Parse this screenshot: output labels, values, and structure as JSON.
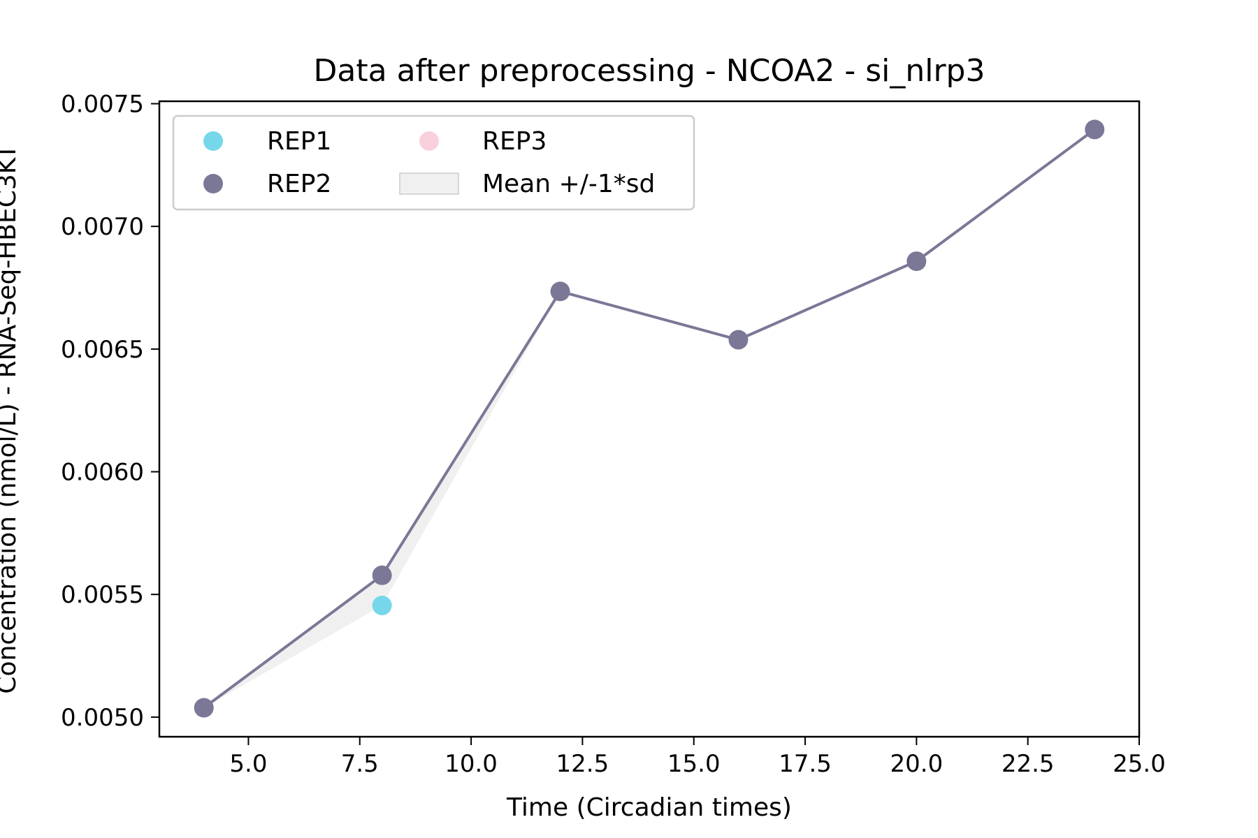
{
  "chart_data": {
    "type": "line",
    "title": "Data after preprocessing - NCOA2 - si_nlrp3",
    "xlabel": "Time (Circadian times)",
    "ylabel": "Concentration (nmol/L) - RNA-Seq-HBEC3KT",
    "xlim": [
      3.0,
      25.0
    ],
    "ylim": [
      0.00492,
      0.00751
    ],
    "xticks": [
      5.0,
      7.5,
      10.0,
      12.5,
      15.0,
      17.5,
      20.0,
      22.5,
      25.0
    ],
    "xtick_labels": [
      "5.0",
      "7.5",
      "10.0",
      "12.5",
      "15.0",
      "17.5",
      "20.0",
      "22.5",
      "25.0"
    ],
    "yticks": [
      0.005,
      0.0055,
      0.006,
      0.0065,
      0.007,
      0.0075
    ],
    "ytick_labels": [
      "0.0050",
      "0.0055",
      "0.0060",
      "0.0065",
      "0.0070",
      "0.0075"
    ],
    "grid": false,
    "legend_position": "top-left",
    "series": [
      {
        "name": "REP1",
        "kind": "scatter",
        "color": "#76d7ea",
        "x": [
          8
        ],
        "y": [
          0.005455
        ]
      },
      {
        "name": "REP2",
        "kind": "line+scatter",
        "color": "#7a7896",
        "x": [
          4,
          8,
          12,
          16,
          20,
          24
        ],
        "y": [
          0.005038,
          0.005578,
          0.006735,
          0.006538,
          0.006858,
          0.007395
        ]
      },
      {
        "name": "REP3",
        "kind": "scatter",
        "color": "#f9d0dc",
        "x": [],
        "y": []
      }
    ],
    "band": {
      "name": "Mean +/-1*sd",
      "color": "#d9d9d9",
      "x": [
        4,
        8,
        12,
        16,
        20,
        24
      ],
      "lower": [
        0.005038,
        0.005455,
        0.006735,
        0.006538,
        0.006858,
        0.007395
      ],
      "upper": [
        0.005038,
        0.005578,
        0.006735,
        0.006538,
        0.006858,
        0.007395
      ]
    },
    "legend": [
      {
        "label": "REP1",
        "marker": "circle",
        "color": "#76d7ea"
      },
      {
        "label": "REP2",
        "marker": "circle",
        "color": "#7a7896"
      },
      {
        "label": "REP3",
        "marker": "circle",
        "color": "#f9d0dc"
      },
      {
        "label": "Mean +/-1*sd",
        "marker": "patch",
        "color": "#d9d9d9"
      }
    ]
  }
}
